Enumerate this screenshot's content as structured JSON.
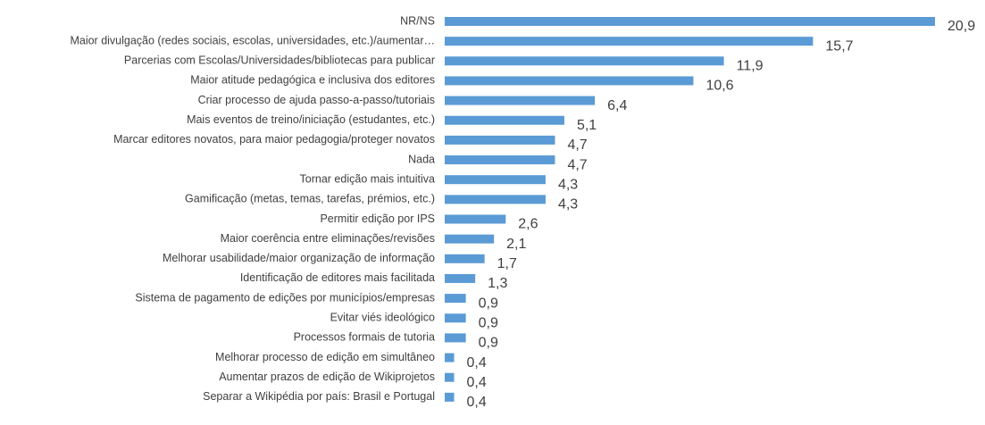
{
  "chart_data": {
    "type": "bar",
    "orientation": "horizontal",
    "color": "#5b9bd5",
    "categories": [
      "NR/NS",
      "Maior divulgação (redes sociais, escolas, universidades, etc.)/aumentar…",
      "Parcerias com Escolas/Universidades/bibliotecas para publicar",
      "Maior atitude pedagógica e inclusiva dos editores",
      "Criar processo de ajuda passo-a-passo/tutoriais",
      "Mais eventos de treino/iniciação (estudantes, etc.)",
      "Marcar editores novatos, para maior pedagogia/proteger novatos",
      "Nada",
      "Tornar edição mais intuitiva",
      "Gamificação (metas, temas, tarefas, prémios, etc.)",
      "Permitir edição por IPS",
      "Maior coerência entre eliminações/revisões",
      "Melhorar usabilidade/maior organização de informação",
      "Identificação de editores mais facilitada",
      "Sistema de pagamento de edições por municípios/empresas",
      "Evitar viés ideológico",
      "Processos formais de tutoria",
      "Melhorar processo de edição em simultâneo",
      "Aumentar prazos de edição de Wikiprojetos",
      "Separar a Wikipédia por país: Brasil e Portugal"
    ],
    "values": [
      20.9,
      15.7,
      11.9,
      10.6,
      6.4,
      5.1,
      4.7,
      4.7,
      4.3,
      4.3,
      2.6,
      2.1,
      1.7,
      1.3,
      0.9,
      0.9,
      0.9,
      0.4,
      0.4,
      0.4
    ],
    "value_labels": [
      "20,9",
      "15,7",
      "11,9",
      "10,6",
      "6,4",
      "5,1",
      "4,7",
      "4,7",
      "4,3",
      "4,3",
      "2,6",
      "2,1",
      "1,7",
      "1,3",
      "0,9",
      "0,9",
      "0,9",
      "0,4",
      "0,4",
      "0,4"
    ]
  }
}
